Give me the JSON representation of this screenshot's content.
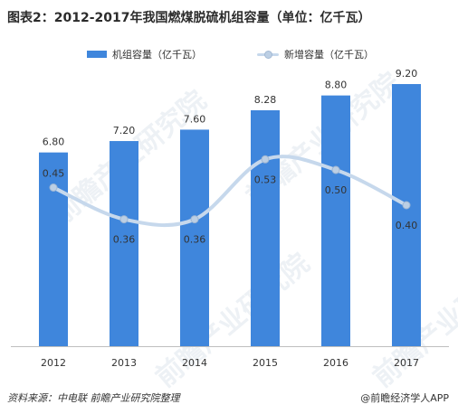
{
  "title": "图表2：2012-2017年我国燃煤脱硫机组容量（单位：亿千瓦）",
  "source": "资料来源：中电联  前瞻产业研究院整理",
  "credit": "@前瞻经济学人APP",
  "watermark": "前瞻产业研究院",
  "colors": {
    "bar": "#3f86dc",
    "line": "#c6d8ec",
    "marker": "#bccfe4",
    "axis": "#bfbfbf"
  },
  "chart_data": {
    "type": "bar",
    "categories": [
      "2012",
      "2013",
      "2014",
      "2015",
      "2016",
      "2017"
    ],
    "series": [
      {
        "name": "机组容量（亿千瓦）",
        "type": "bar",
        "values": [
          6.8,
          7.2,
          7.6,
          8.28,
          8.8,
          9.2
        ],
        "labels": [
          "6.80",
          "7.20",
          "7.60",
          "8.28",
          "8.80",
          "9.20"
        ]
      },
      {
        "name": "新增容量（亿千瓦）",
        "type": "line",
        "values": [
          0.45,
          0.36,
          0.36,
          0.53,
          0.5,
          0.4
        ],
        "labels": [
          "0.45",
          "0.36",
          "0.36",
          "0.53",
          "0.50",
          "0.40"
        ]
      }
    ],
    "legend": "top-center",
    "grid": false,
    "title": "图表2：2012-2017年我国燃煤脱硫机组容量（单位：亿千瓦）"
  }
}
